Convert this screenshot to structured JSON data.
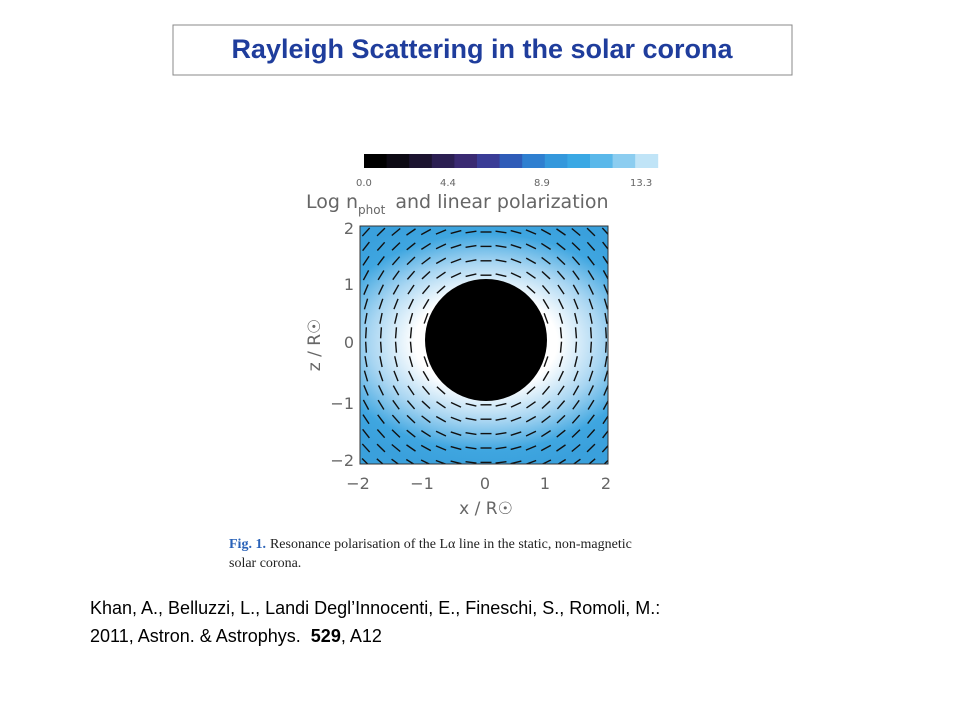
{
  "title": "Rayleigh Scattering in the solar corona",
  "figure": {
    "colorbar_labels": [
      "0.0",
      "4.4",
      "8.9",
      "13.3"
    ],
    "heading": {
      "start": "Log n",
      "subscript": "phot",
      "end": "and linear polarization"
    },
    "y_label": "z / R☉",
    "y_ticks": [
      "2",
      "1",
      "0",
      "−1",
      "−2"
    ],
    "x_ticks": [
      "−2",
      "−1",
      "0",
      "1",
      "2"
    ],
    "x_label": "x / R☉",
    "caption": {
      "label": "Fig. 1.",
      "text_line1": "Resonance polarisation of the Lα line in the static, non-magnetic",
      "text_line2": "solar corona."
    }
  },
  "citation": {
    "line1": "Khan, A., Belluzzi, L., Landi Degl’Innocenti, E.,  Fineschi, S., Romoli, M.:",
    "line2_start": "2011, Astron. & Astrophys.  ",
    "volume": "529",
    "line2_end": ", A12"
  }
}
